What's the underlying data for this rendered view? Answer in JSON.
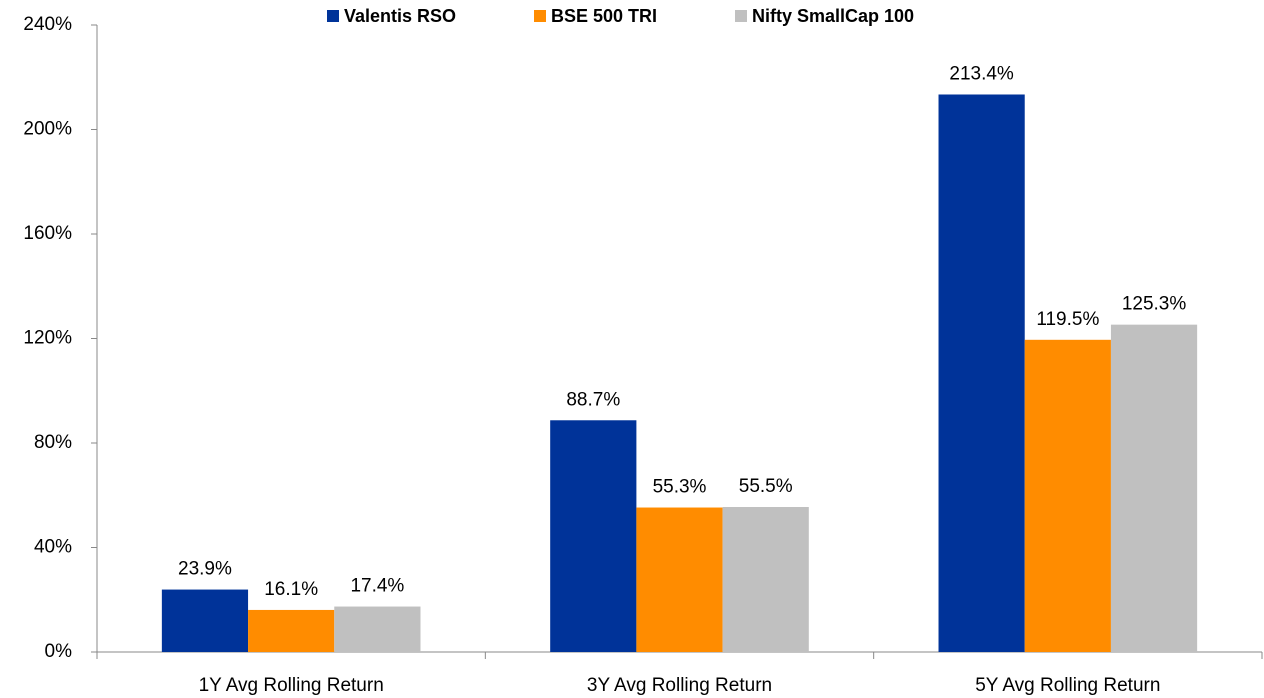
{
  "chart_data": {
    "type": "bar",
    "categories": [
      "1Y Avg Rolling Return",
      "3Y Avg Rolling Return",
      "5Y Avg Rolling Return"
    ],
    "series": [
      {
        "name": "Valentis RSO",
        "color": "#003399",
        "values": [
          23.9,
          88.7,
          213.4
        ],
        "value_labels": [
          "23.9%",
          "88.7%",
          "213.4%"
        ]
      },
      {
        "name": "BSE 500 TRI",
        "color": "#ff8c00",
        "values": [
          16.1,
          55.3,
          119.5
        ],
        "value_labels": [
          "16.1%",
          "55.3%",
          "119.5%"
        ]
      },
      {
        "name": "Nifty SmallCap 100",
        "color": "#c0c0c0",
        "values": [
          17.4,
          55.5,
          125.3
        ],
        "value_labels": [
          "17.4%",
          "55.5%",
          "125.3%"
        ]
      }
    ],
    "ylim": [
      0,
      240
    ],
    "yticks": [
      {
        "value": 0,
        "label": "0%"
      },
      {
        "value": 40,
        "label": "40%"
      },
      {
        "value": 80,
        "label": "80%"
      },
      {
        "value": 120,
        "label": "120%"
      },
      {
        "value": 160,
        "label": "160%"
      },
      {
        "value": 200,
        "label": "200%"
      },
      {
        "value": 240,
        "label": "240%"
      }
    ],
    "grid": false,
    "legend": "top"
  }
}
